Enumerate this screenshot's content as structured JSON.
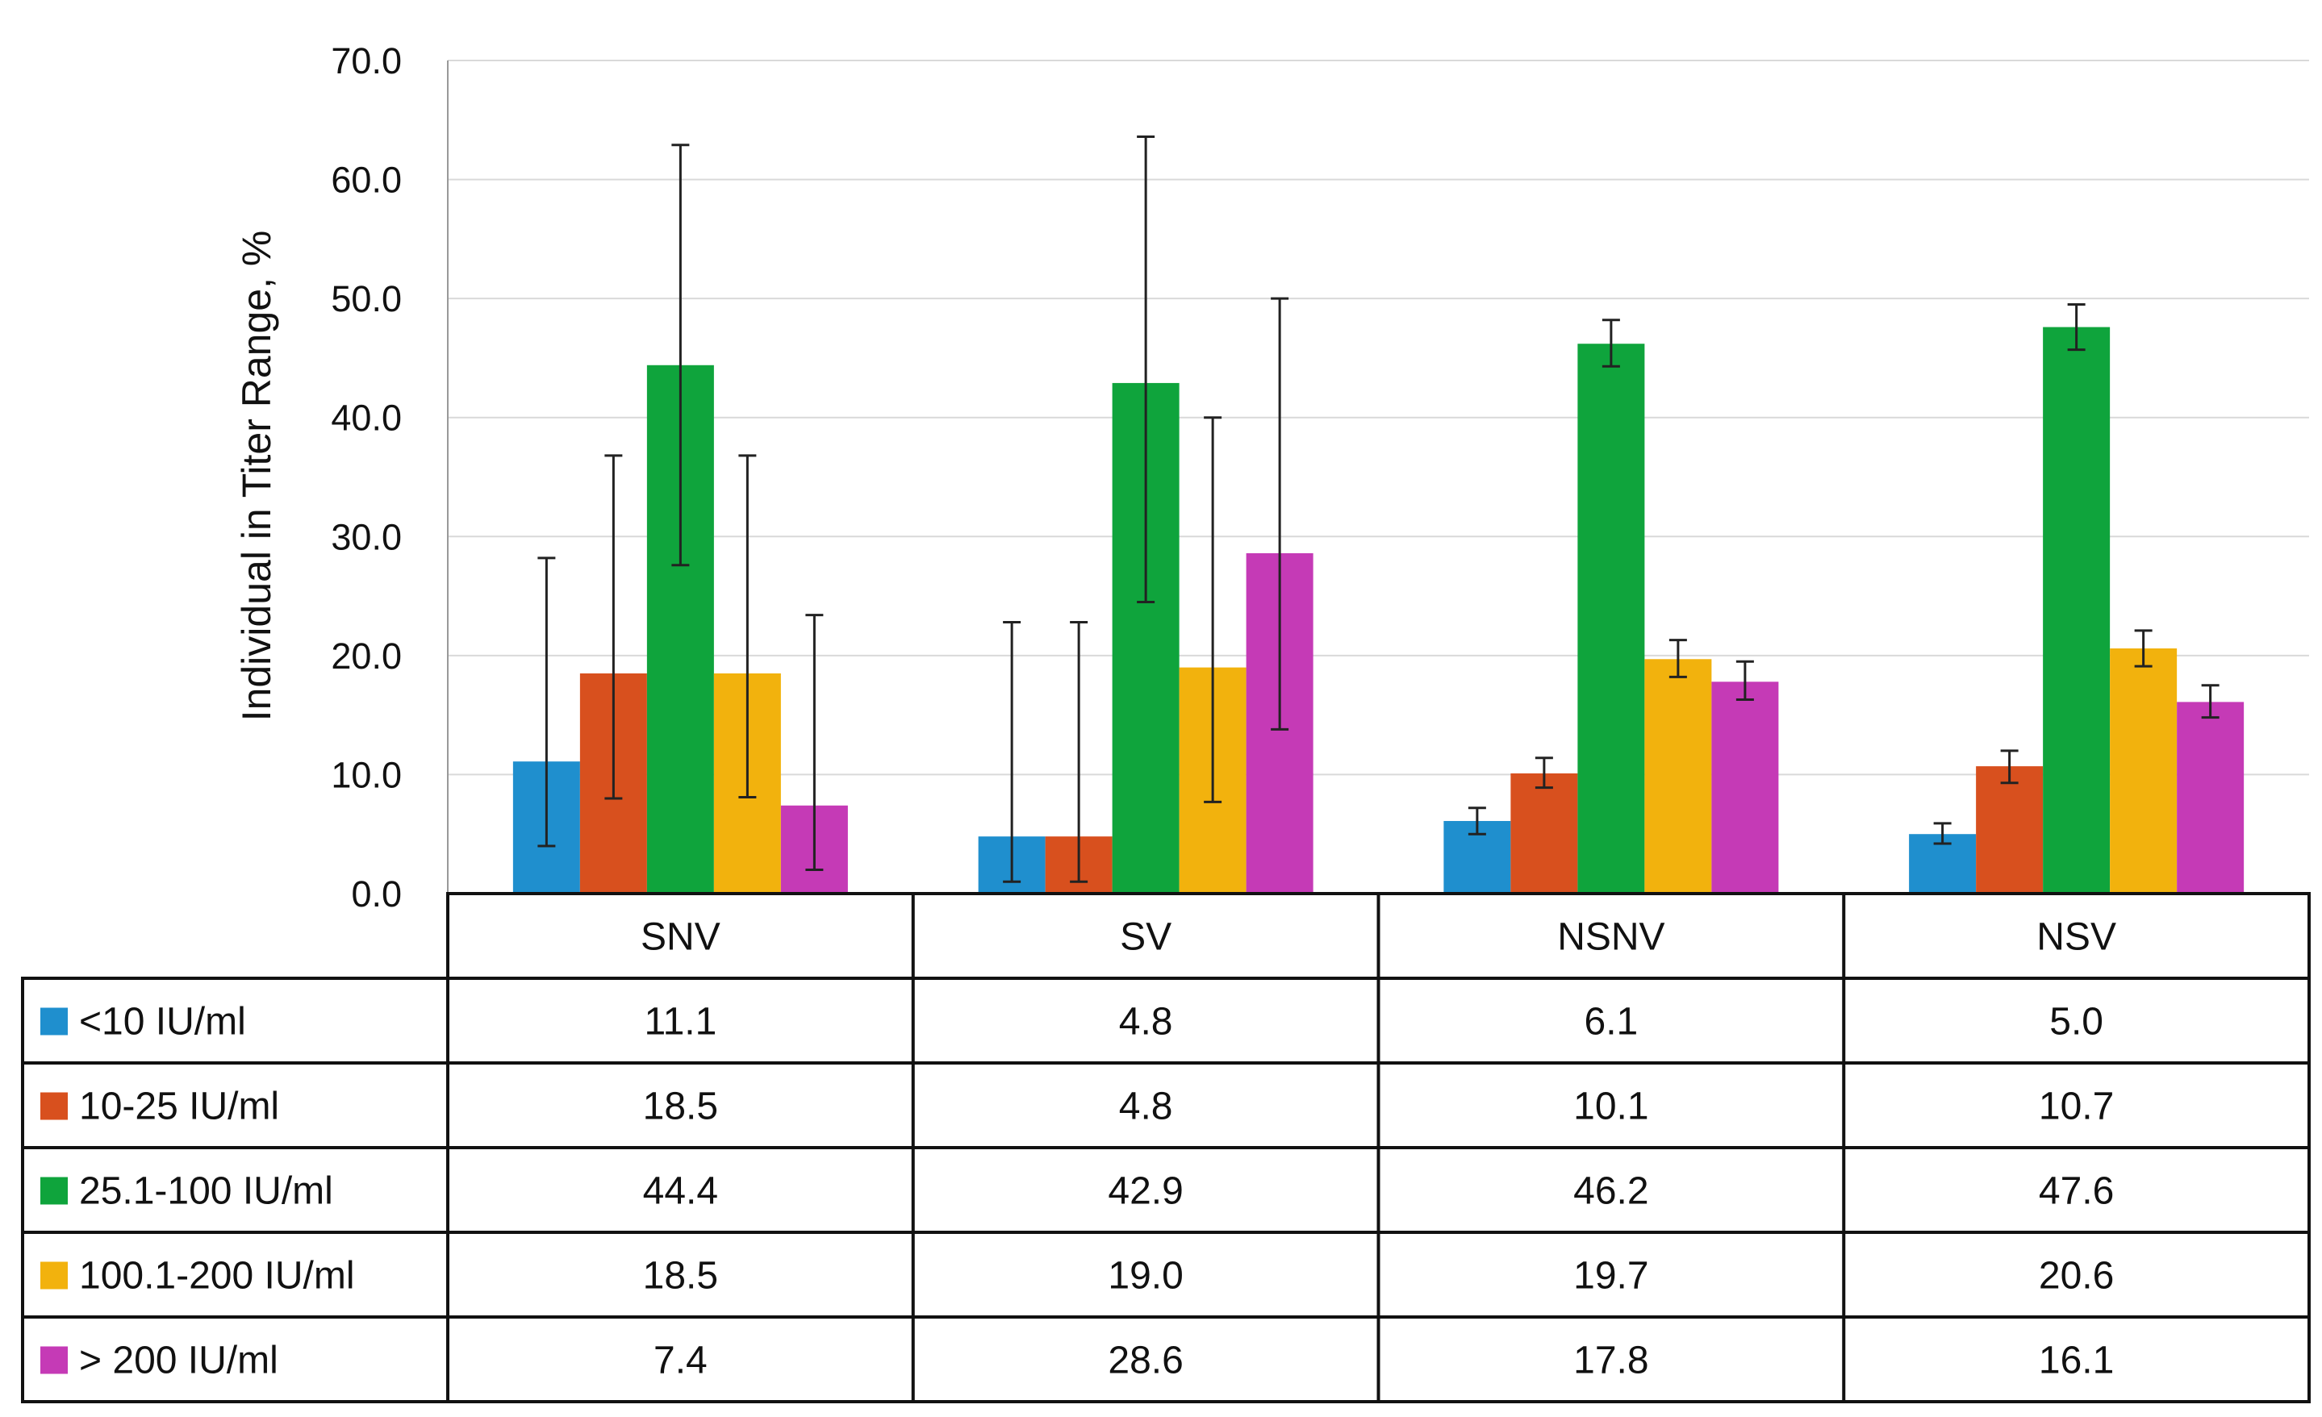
{
  "chart_data": {
    "type": "bar",
    "ylabel": "Individual in Titer Range, %",
    "xlabel": "",
    "ylim": [
      0,
      70
    ],
    "yticks": [
      "0.0",
      "10.0",
      "20.0",
      "30.0",
      "40.0",
      "50.0",
      "60.0",
      "70.0"
    ],
    "grid": true,
    "legend": "data-table-left",
    "categories": [
      "SNV",
      "SV",
      "NSNV",
      "NSV"
    ],
    "series": [
      {
        "name": "<10 IU/ml",
        "color": "#1f8fce",
        "values": [
          11.1,
          4.8,
          6.1,
          5.0
        ],
        "labels": [
          "11.1",
          "4.8",
          "6.1",
          "5.0"
        ],
        "error_low": [
          4.0,
          1.0,
          5.0,
          4.2
        ],
        "error_high": [
          28.2,
          22.8,
          7.2,
          5.9
        ]
      },
      {
        "name": "10-25 IU/ml",
        "color": "#d8501e",
        "values": [
          18.5,
          4.8,
          10.1,
          10.7
        ],
        "labels": [
          "18.5",
          "4.8",
          "10.1",
          "10.7"
        ],
        "error_low": [
          8.0,
          1.0,
          8.9,
          9.3
        ],
        "error_high": [
          36.8,
          22.8,
          11.4,
          12.0
        ]
      },
      {
        "name": "25.1-100 IU/ml",
        "color": "#0fa43c",
        "values": [
          44.4,
          42.9,
          46.2,
          47.6
        ],
        "labels": [
          "44.4",
          "42.9",
          "46.2",
          "47.6"
        ],
        "error_low": [
          27.6,
          24.5,
          44.3,
          45.7
        ],
        "error_high": [
          62.9,
          63.6,
          48.2,
          49.5
        ]
      },
      {
        "name": "100.1-200 IU/ml",
        "color": "#f2b20d",
        "values": [
          18.5,
          19.0,
          19.7,
          20.6
        ],
        "labels": [
          "18.5",
          "19.0",
          "19.7",
          "20.6"
        ],
        "error_low": [
          8.1,
          7.7,
          18.2,
          19.1
        ],
        "error_high": [
          36.8,
          40.0,
          21.3,
          22.1
        ]
      },
      {
        "name": "> 200 IU/ml",
        "color": "#c53ab6",
        "values": [
          7.4,
          28.6,
          17.8,
          16.1
        ],
        "labels": [
          "7.4",
          "28.6",
          "17.8",
          "16.1"
        ],
        "error_low": [
          2.0,
          13.8,
          16.3,
          14.8
        ],
        "error_high": [
          23.4,
          50.0,
          19.5,
          17.5
        ]
      }
    ]
  }
}
